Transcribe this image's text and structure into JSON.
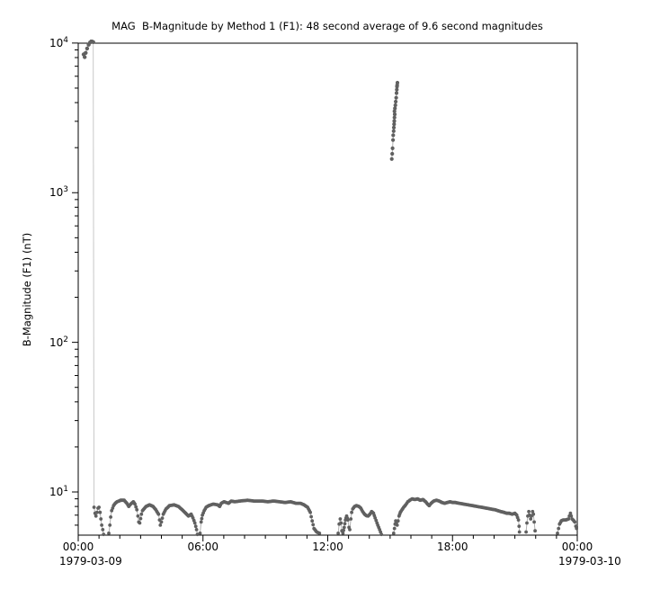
{
  "window": {
    "background": "#ffffff"
  },
  "chart_data": {
    "type": "scatter",
    "title": "MAG  B-Magnitude by Method 1 (F1): 48 second average of 9.6 second magnitudes",
    "ylabel": "B-Magnitude (F1) (nT)",
    "xlabel": "",
    "y_scale": "log",
    "y_range": [
      5.15,
      10000
    ],
    "x_range_hours": [
      0,
      24
    ],
    "grid": false,
    "legend": "none",
    "colors": {
      "marker": "#606060",
      "line": "#b0b0b0",
      "connector": "#c8c8c8",
      "frame": "#000000",
      "text": "#000000"
    },
    "x_ticks": [
      {
        "hour": 0,
        "label": "00:00",
        "date": "1979-03-09"
      },
      {
        "hour": 6,
        "label": "06:00"
      },
      {
        "hour": 12,
        "label": "12:00"
      },
      {
        "hour": 18,
        "label": "18:00"
      },
      {
        "hour": 24,
        "label": "00:00",
        "date": "1979-03-10"
      }
    ],
    "x_minor_tick_interval_hours": 1,
    "y_ticks": [
      {
        "value": 10,
        "base": "10",
        "exp": "1"
      },
      {
        "value": 100,
        "base": "10",
        "exp": "2"
      },
      {
        "value": 1000,
        "base": "10",
        "exp": "3"
      },
      {
        "value": 10000,
        "base": "10",
        "exp": "4"
      }
    ],
    "segments": [
      {
        "name": "start-spike",
        "dense": false,
        "marker_r": 2.2,
        "points": [
          [
            0.26,
            8400
          ],
          [
            0.31,
            8050
          ],
          [
            0.36,
            8600
          ],
          [
            0.43,
            9200
          ],
          [
            0.5,
            9750
          ],
          [
            0.57,
            10100
          ],
          [
            0.64,
            10300
          ],
          [
            0.72,
            10150
          ]
        ]
      },
      {
        "name": "band-00h-01h",
        "dense": true,
        "marker_r": 1.9,
        "points": [
          [
            0.76,
            7.9
          ],
          [
            0.81,
            7.2
          ],
          [
            0.85,
            6.9
          ],
          [
            0.9,
            7.3
          ],
          [
            0.95,
            7.8
          ],
          [
            1.0,
            7.9
          ],
          [
            1.05,
            7.3
          ],
          [
            1.09,
            6.6
          ],
          [
            1.13,
            6.0
          ],
          [
            1.18,
            5.6
          ],
          [
            1.22,
            5.2
          ]
        ]
      },
      {
        "name": "band-01h-06h",
        "dense": true,
        "marker_r": 1.9,
        "points": [
          [
            1.47,
            5.3
          ],
          [
            1.52,
            6.0
          ],
          [
            1.56,
            6.8
          ],
          [
            1.61,
            7.5
          ],
          [
            1.7,
            8.1
          ],
          [
            1.78,
            8.4
          ],
          [
            1.87,
            8.6
          ],
          [
            2.04,
            8.8
          ],
          [
            2.21,
            8.8
          ],
          [
            2.34,
            8.4
          ],
          [
            2.43,
            8.0
          ],
          [
            2.52,
            8.3
          ],
          [
            2.65,
            8.6
          ],
          [
            2.73,
            8.3
          ],
          [
            2.82,
            7.6
          ],
          [
            2.87,
            6.9
          ],
          [
            2.91,
            6.3
          ],
          [
            2.96,
            6.2
          ],
          [
            3.04,
            7.1
          ],
          [
            3.09,
            7.5
          ],
          [
            3.26,
            8.0
          ],
          [
            3.43,
            8.2
          ],
          [
            3.6,
            8.0
          ],
          [
            3.73,
            7.6
          ],
          [
            3.86,
            7.1
          ],
          [
            3.91,
            6.5
          ],
          [
            3.95,
            6.0
          ],
          [
            4.0,
            6.3
          ],
          [
            4.09,
            7.1
          ],
          [
            4.22,
            7.7
          ],
          [
            4.39,
            8.1
          ],
          [
            4.61,
            8.2
          ],
          [
            4.82,
            8.0
          ],
          [
            5.0,
            7.6
          ],
          [
            5.17,
            7.2
          ],
          [
            5.3,
            6.9
          ],
          [
            5.43,
            7.1
          ],
          [
            5.52,
            6.7
          ],
          [
            5.61,
            6.2
          ],
          [
            5.69,
            5.6
          ],
          [
            5.73,
            5.2
          ]
        ]
      },
      {
        "name": "band-06h-12h",
        "dense": true,
        "marker_r": 1.9,
        "points": [
          [
            5.86,
            5.3
          ],
          [
            5.91,
            6.3
          ],
          [
            5.97,
            7.0
          ],
          [
            6.06,
            7.5
          ],
          [
            6.15,
            7.9
          ],
          [
            6.28,
            8.1
          ],
          [
            6.49,
            8.3
          ],
          [
            6.71,
            8.2
          ],
          [
            6.8,
            8.0
          ],
          [
            6.88,
            8.4
          ],
          [
            7.01,
            8.6
          ],
          [
            7.23,
            8.4
          ],
          [
            7.36,
            8.7
          ],
          [
            7.53,
            8.6
          ],
          [
            7.79,
            8.7
          ],
          [
            8.14,
            8.8
          ],
          [
            8.44,
            8.7
          ],
          [
            8.83,
            8.7
          ],
          [
            9.13,
            8.6
          ],
          [
            9.39,
            8.7
          ],
          [
            9.69,
            8.6
          ],
          [
            9.95,
            8.5
          ],
          [
            10.21,
            8.6
          ],
          [
            10.47,
            8.4
          ],
          [
            10.69,
            8.4
          ],
          [
            10.86,
            8.2
          ],
          [
            11.03,
            7.9
          ],
          [
            11.16,
            7.3
          ],
          [
            11.25,
            6.4
          ],
          [
            11.34,
            5.7
          ],
          [
            11.47,
            5.4
          ],
          [
            11.6,
            5.3
          ]
        ]
      },
      {
        "name": "band-12h-14h35",
        "dense": true,
        "marker_r": 1.9,
        "points": [
          [
            12.5,
            5.3
          ],
          [
            12.55,
            6.1
          ],
          [
            12.6,
            6.6
          ],
          [
            12.64,
            6.2
          ],
          [
            12.68,
            5.5
          ],
          [
            12.73,
            5.3
          ],
          [
            12.79,
            5.8
          ],
          [
            12.85,
            6.5
          ],
          [
            12.91,
            6.9
          ],
          [
            12.97,
            6.5
          ],
          [
            13.02,
            5.8
          ],
          [
            13.06,
            5.6
          ],
          [
            13.11,
            6.6
          ],
          [
            13.15,
            7.3
          ],
          [
            13.2,
            7.7
          ],
          [
            13.29,
            8.0
          ],
          [
            13.38,
            8.1
          ],
          [
            13.5,
            8.0
          ],
          [
            13.59,
            7.8
          ],
          [
            13.68,
            7.4
          ],
          [
            13.77,
            7.1
          ],
          [
            13.85,
            6.95
          ],
          [
            13.94,
            6.9
          ],
          [
            14.03,
            7.1
          ],
          [
            14.11,
            7.4
          ],
          [
            14.2,
            7.2
          ],
          [
            14.28,
            6.7
          ],
          [
            14.37,
            6.2
          ],
          [
            14.45,
            5.8
          ],
          [
            14.54,
            5.4
          ],
          [
            14.58,
            5.2
          ]
        ]
      },
      {
        "name": "midday-cluster",
        "dense": false,
        "marker_r": 2.1,
        "points": [
          [
            15.08,
            1680
          ],
          [
            15.1,
            1820
          ],
          [
            15.12,
            1980
          ],
          [
            15.14,
            2250
          ],
          [
            15.15,
            2420
          ],
          [
            15.17,
            2580
          ],
          [
            15.18,
            2720
          ],
          [
            15.19,
            2870
          ],
          [
            15.2,
            3010
          ],
          [
            15.21,
            3180
          ],
          [
            15.22,
            3340
          ],
          [
            15.21,
            3500
          ],
          [
            15.23,
            3660
          ],
          [
            15.25,
            3840
          ],
          [
            15.27,
            4060
          ],
          [
            15.29,
            4310
          ],
          [
            15.31,
            4630
          ],
          [
            15.32,
            4880
          ],
          [
            15.33,
            5110
          ],
          [
            15.35,
            5430
          ],
          [
            15.34,
            5230
          ]
        ]
      },
      {
        "name": "band-15h-21h",
        "dense": true,
        "marker_r": 1.9,
        "points": [
          [
            15.17,
            5.3
          ],
          [
            15.21,
            5.7
          ],
          [
            15.24,
            6.1
          ],
          [
            15.27,
            6.4
          ],
          [
            15.3,
            6.2
          ],
          [
            15.34,
            6.0
          ],
          [
            15.38,
            6.4
          ],
          [
            15.43,
            6.9
          ],
          [
            15.49,
            7.3
          ],
          [
            15.57,
            7.6
          ],
          [
            15.65,
            7.9
          ],
          [
            15.75,
            8.2
          ],
          [
            15.85,
            8.6
          ],
          [
            15.95,
            8.8
          ],
          [
            16.06,
            9.0
          ],
          [
            16.19,
            8.9
          ],
          [
            16.32,
            9.0
          ],
          [
            16.45,
            8.8
          ],
          [
            16.58,
            8.9
          ],
          [
            16.71,
            8.6
          ],
          [
            16.8,
            8.3
          ],
          [
            16.88,
            8.1
          ],
          [
            16.97,
            8.4
          ],
          [
            17.1,
            8.7
          ],
          [
            17.23,
            8.8
          ],
          [
            17.36,
            8.7
          ],
          [
            17.49,
            8.5
          ],
          [
            17.62,
            8.4
          ],
          [
            17.75,
            8.5
          ],
          [
            17.88,
            8.6
          ],
          [
            18.01,
            8.5
          ],
          [
            18.14,
            8.5
          ],
          [
            18.32,
            8.4
          ],
          [
            18.53,
            8.3
          ],
          [
            18.75,
            8.2
          ],
          [
            18.97,
            8.1
          ],
          [
            19.18,
            8.0
          ],
          [
            19.4,
            7.9
          ],
          [
            19.62,
            7.8
          ],
          [
            19.83,
            7.7
          ],
          [
            20.05,
            7.6
          ],
          [
            20.18,
            7.5
          ],
          [
            20.31,
            7.4
          ],
          [
            20.48,
            7.3
          ],
          [
            20.61,
            7.2
          ],
          [
            20.74,
            7.2
          ],
          [
            20.87,
            7.1
          ],
          [
            21.0,
            7.2
          ],
          [
            21.09,
            7.0
          ],
          [
            21.17,
            6.5
          ],
          [
            21.2,
            5.9
          ],
          [
            21.22,
            5.4
          ]
        ]
      },
      {
        "name": "band-21h30-22h",
        "dense": true,
        "marker_r": 1.9,
        "points": [
          [
            21.54,
            5.4
          ],
          [
            21.58,
            6.2
          ],
          [
            21.62,
            6.9
          ],
          [
            21.67,
            7.4
          ],
          [
            21.71,
            7.0
          ],
          [
            21.76,
            6.6
          ],
          [
            21.8,
            6.9
          ],
          [
            21.85,
            7.4
          ],
          [
            21.89,
            7.1
          ],
          [
            21.93,
            6.3
          ],
          [
            21.97,
            5.5
          ]
        ]
      },
      {
        "name": "band-23h-24h",
        "dense": true,
        "marker_r": 1.9,
        "points": [
          [
            23.05,
            5.3
          ],
          [
            23.1,
            5.7
          ],
          [
            23.15,
            6.1
          ],
          [
            23.23,
            6.4
          ],
          [
            23.32,
            6.5
          ],
          [
            23.45,
            6.5
          ],
          [
            23.58,
            6.6
          ],
          [
            23.62,
            6.9
          ],
          [
            23.67,
            7.2
          ],
          [
            23.71,
            6.9
          ],
          [
            23.75,
            6.6
          ],
          [
            23.8,
            6.5
          ],
          [
            23.84,
            6.4
          ],
          [
            23.88,
            6.3
          ],
          [
            23.93,
            5.9
          ],
          [
            23.97,
            5.7
          ],
          [
            24.0,
            5.8
          ]
        ]
      }
    ],
    "connectors": [
      {
        "name": "spike-to-band-line",
        "from": [
          0.72,
          10150
        ],
        "to": [
          0.76,
          7.9
        ]
      }
    ]
  }
}
